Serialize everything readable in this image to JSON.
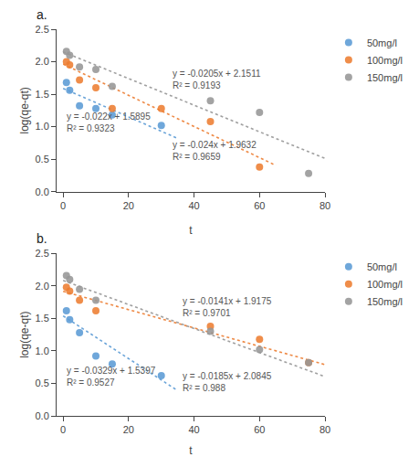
{
  "chart_data": [
    {
      "type": "scatter",
      "title": "a.",
      "xlabel": "t",
      "ylabel": "log(qe-qt)",
      "xlim": [
        -2,
        80
      ],
      "ylim": [
        0,
        2.5
      ],
      "xticks": [
        0,
        20,
        40,
        60,
        80
      ],
      "yticks": [
        {
          "value": 0,
          "label": "0.0"
        },
        0.5,
        {
          "value": 1,
          "label": "1.0"
        },
        1.5,
        {
          "value": 2,
          "label": "2.0"
        },
        2.5
      ],
      "grid": false,
      "legend": "right",
      "series": [
        {
          "name": "50mg/l",
          "color": "#5b9bd5",
          "marker": "circle",
          "x": [
            1,
            2,
            5,
            10,
            15,
            30
          ],
          "y": [
            1.68,
            1.56,
            1.32,
            1.28,
            1.18,
            1.02
          ],
          "trendline": {
            "x": [
              0,
              35
            ],
            "y": [
              1.5895,
              0.8195
            ],
            "line_style": "dotted"
          }
        },
        {
          "name": "100mg/l",
          "color": "#ed7d31",
          "marker": "circle",
          "x": [
            1,
            2,
            5,
            10,
            15,
            30,
            45,
            60
          ],
          "y": [
            2.0,
            1.95,
            1.72,
            1.6,
            1.28,
            1.28,
            1.08,
            0.38
          ],
          "trendline": {
            "x": [
              0,
              65
            ],
            "y": [
              1.9632,
              0.4032
            ],
            "line_style": "dotted"
          }
        },
        {
          "name": "150mg/l",
          "color": "#969696",
          "marker": "circle",
          "x": [
            1,
            2,
            5,
            10,
            15,
            45,
            60,
            75
          ],
          "y": [
            2.16,
            2.1,
            1.92,
            1.88,
            1.62,
            1.4,
            1.22,
            0.28
          ],
          "trendline": {
            "x": [
              0,
              80
            ],
            "y": [
              2.1511,
              0.5111
            ],
            "line_style": "dotted"
          }
        }
      ],
      "annotations": [
        {
          "text": "y = -0.022x + 1.5895\nR² = 0.9323",
          "x": 0.5,
          "y": 1.06
        },
        {
          "text": "y = -0.024x + 1.9632\nR² = 0.9659",
          "x": 33,
          "y": 0.63
        },
        {
          "text": "y = -0.0205x + 2.1511\nR² = 0.9193",
          "x": 33,
          "y": 1.72
        }
      ]
    },
    {
      "type": "scatter",
      "title": "b.",
      "xlabel": "t",
      "ylabel": "log(qe-qt)",
      "xlim": [
        -2,
        80
      ],
      "ylim": [
        0,
        2.5
      ],
      "xticks": [
        0,
        20,
        40,
        60,
        80
      ],
      "yticks": [
        {
          "value": 0,
          "label": "0.0"
        },
        0.5,
        {
          "value": 1,
          "label": "1.0"
        },
        1.5,
        {
          "value": 2,
          "label": "2.0"
        },
        2.5
      ],
      "grid": false,
      "legend": "right",
      "series": [
        {
          "name": "50mg/l",
          "color": "#5b9bd5",
          "marker": "circle",
          "x": [
            1,
            2,
            5,
            10,
            15,
            30
          ],
          "y": [
            1.62,
            1.48,
            1.28,
            0.92,
            0.8,
            0.62
          ],
          "trendline": {
            "x": [
              0,
              35
            ],
            "y": [
              1.5397,
              0.3882
            ],
            "line_style": "dotted"
          }
        },
        {
          "name": "100mg/l",
          "color": "#ed7d31",
          "marker": "circle",
          "x": [
            1,
            2,
            5,
            10,
            45,
            60,
            75
          ],
          "y": [
            1.98,
            1.92,
            1.78,
            1.62,
            1.38,
            1.18,
            0.82
          ],
          "trendline": {
            "x": [
              0,
              80
            ],
            "y": [
              1.9175,
              0.7895
            ],
            "line_style": "dotted"
          }
        },
        {
          "name": "150mg/l",
          "color": "#969696",
          "marker": "circle",
          "x": [
            1,
            2,
            5,
            10,
            45,
            60,
            75
          ],
          "y": [
            2.16,
            2.1,
            1.95,
            1.78,
            1.3,
            1.02,
            0.82
          ],
          "trendline": {
            "x": [
              0,
              80
            ],
            "y": [
              2.0845,
              0.6045
            ],
            "line_style": "dotted"
          }
        }
      ],
      "annotations": [
        {
          "text": "y = -0.0329x + 1.5397\nR² = 0.9527",
          "x": 0.5,
          "y": 0.6
        },
        {
          "text": "y = -0.0141x + 1.9175\nR² = 0.9701",
          "x": 36,
          "y": 1.68
        },
        {
          "text": "y = -0.0185x + 2.0845\nR² = 0.988",
          "x": 36,
          "y": 0.52
        }
      ]
    }
  ]
}
